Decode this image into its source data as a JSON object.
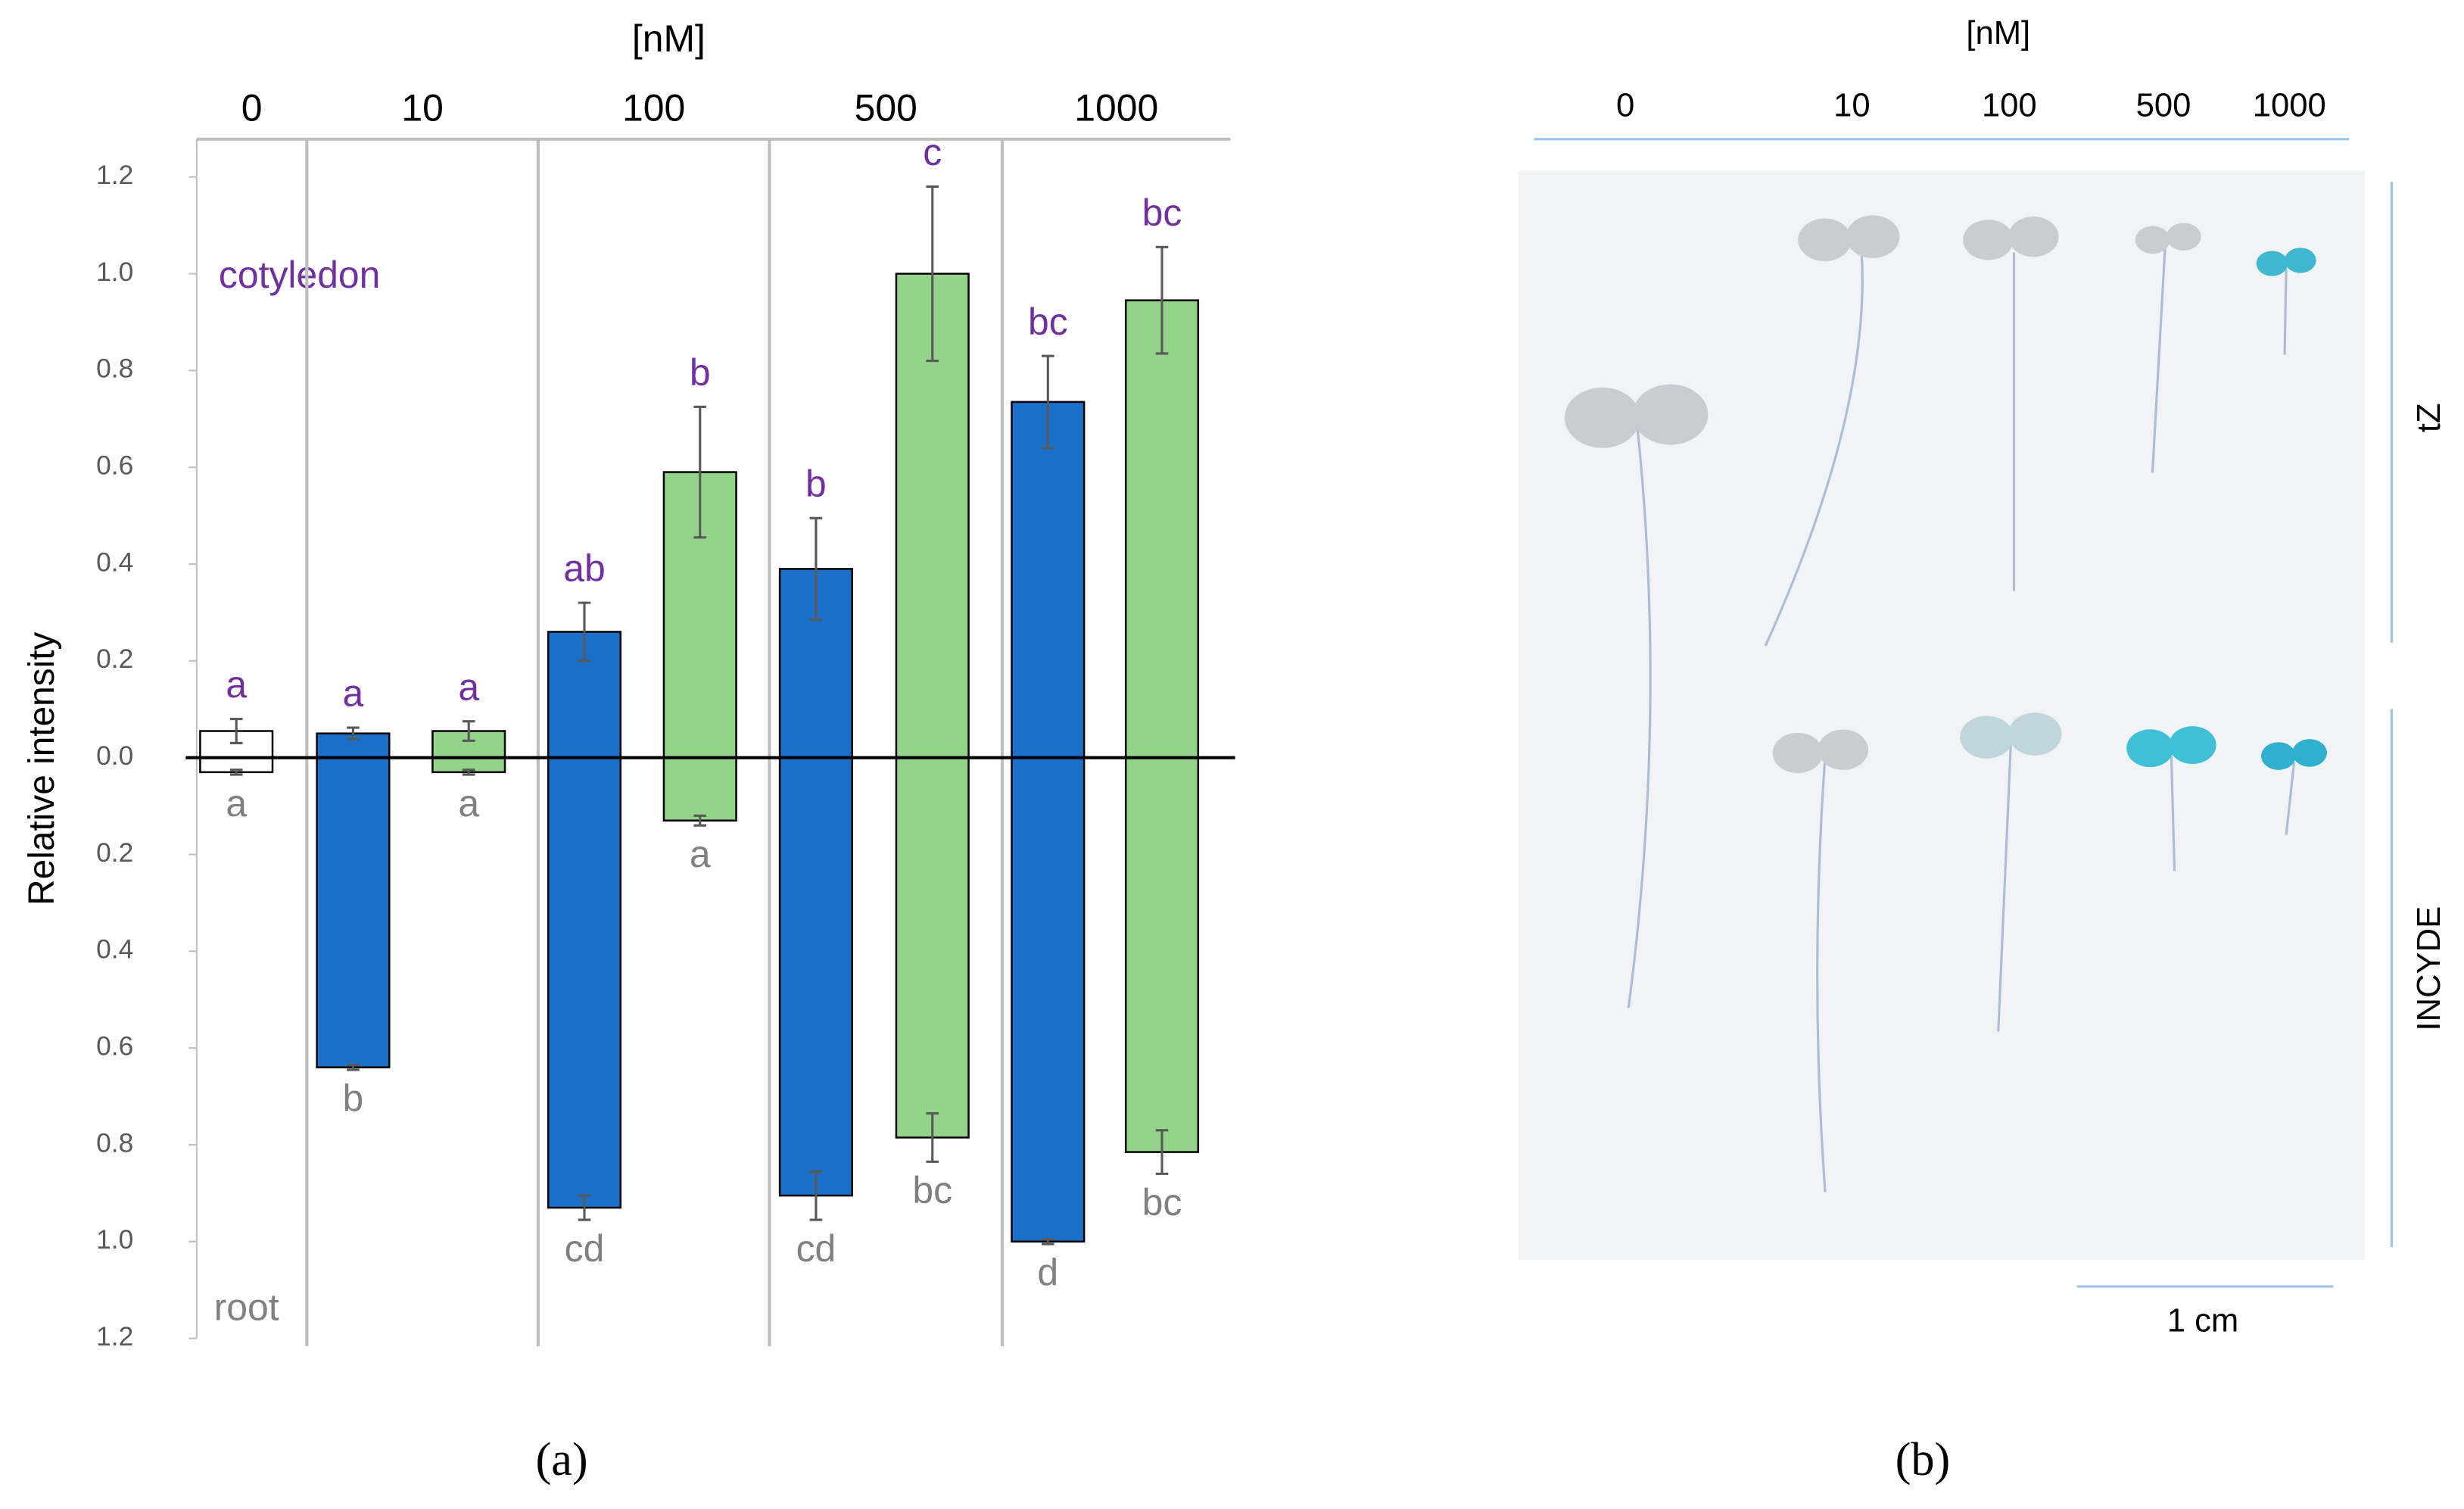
{
  "chart_data": {
    "type": "bar",
    "x_title": "[nM]",
    "y_title": "Relative intensity",
    "annotations": [
      "cotyledon",
      "root"
    ],
    "caption": "(a)",
    "ylim": [
      -1.2,
      1.2
    ],
    "yticks": [
      1.2,
      {
        "value": 1.0,
        "label": "1.0"
      },
      0.8,
      0.6,
      0.4,
      0.2,
      {
        "value": 0.0,
        "label": "0.0"
      },
      {
        "value": -0.2,
        "label": "0.2"
      },
      {
        "value": -0.4,
        "label": "0.4"
      },
      {
        "value": -0.6,
        "label": "0.6"
      },
      {
        "value": -0.8,
        "label": "0.8"
      },
      {
        "value": -1.0,
        "label": "1.0"
      },
      {
        "value": -1.2,
        "label": "1.2"
      }
    ],
    "groups": [
      {
        "label": "0",
        "bars": [
          {
            "color": "#ffffff",
            "cotyledon": 0.055,
            "cotyledon_error": 0.025,
            "cotyledon_letter": "a",
            "root": -0.03,
            "root_error": 0.005,
            "root_letter": "a"
          }
        ]
      },
      {
        "label": "10",
        "bars": [
          {
            "color": "#1a70c8",
            "cotyledon": 0.05,
            "cotyledon_error": 0.012,
            "cotyledon_letter": "a",
            "root": -0.64,
            "root_error": 0.005,
            "root_letter": "b"
          },
          {
            "color": "#94d38a",
            "cotyledon": 0.055,
            "cotyledon_error": 0.02,
            "cotyledon_letter": "a",
            "root": -0.03,
            "root_error": 0.005,
            "root_letter": "a"
          }
        ]
      },
      {
        "label": "100",
        "bars": [
          {
            "color": "#1a70c8",
            "cotyledon": 0.26,
            "cotyledon_error": 0.06,
            "cotyledon_letter": "ab",
            "root": -0.93,
            "root_error": 0.025,
            "root_letter": "cd"
          },
          {
            "color": "#94d38a",
            "cotyledon": 0.59,
            "cotyledon_error": 0.135,
            "cotyledon_letter": "b",
            "root": -0.13,
            "root_error": 0.01,
            "root_letter": "a"
          }
        ]
      },
      {
        "label": "500",
        "bars": [
          {
            "color": "#1a70c8",
            "cotyledon": 0.39,
            "cotyledon_error": 0.105,
            "cotyledon_letter": "b",
            "root": -0.905,
            "root_error": 0.05,
            "root_letter": "cd"
          },
          {
            "color": "#94d38a",
            "cotyledon": 1.0,
            "cotyledon_error": 0.18,
            "cotyledon_letter": "c",
            "root": -0.785,
            "root_error": 0.05,
            "root_letter": "bc"
          }
        ]
      },
      {
        "label": "1000",
        "bars": [
          {
            "color": "#1a70c8",
            "cotyledon": 0.735,
            "cotyledon_error": 0.095,
            "cotyledon_letter": "bc",
            "root": -1.0,
            "root_error": 0.005,
            "root_letter": "d"
          },
          {
            "color": "#94d38a",
            "cotyledon": 0.945,
            "cotyledon_error": 0.11,
            "cotyledon_letter": "bc",
            "root": -0.815,
            "root_error": 0.045,
            "root_letter": "bc"
          }
        ]
      }
    ]
  },
  "photo_panel": {
    "title": "[nM]",
    "columns": [
      "0",
      "10",
      "100",
      "500",
      "1000"
    ],
    "rows": [
      "tZ",
      "INCYDE"
    ],
    "scale": "1 cm",
    "caption": "(b)"
  }
}
